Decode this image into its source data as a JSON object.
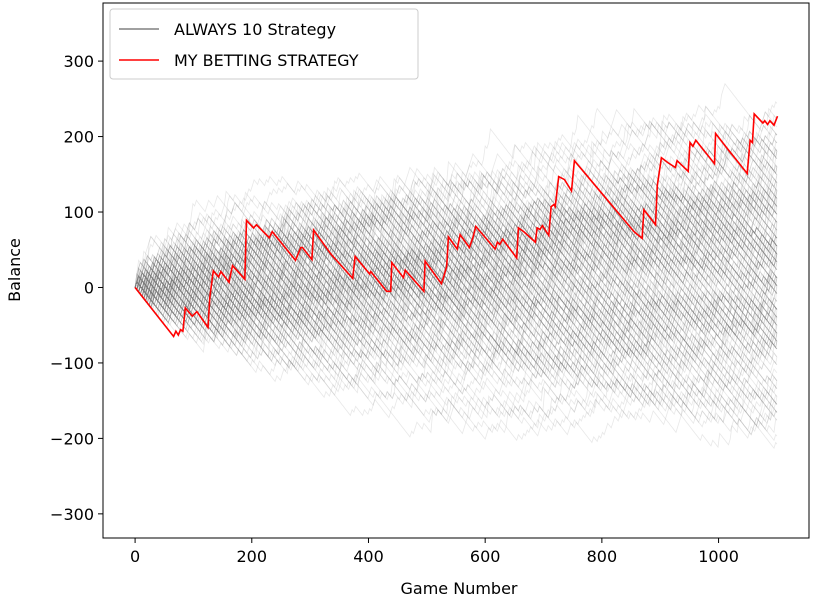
{
  "chart_data": {
    "type": "line",
    "title": "",
    "xlabel": "Game Number",
    "ylabel": "Balance",
    "xlim": [
      -55,
      1155
    ],
    "ylim": [
      -332,
      377
    ],
    "xticks": [
      0,
      200,
      400,
      600,
      800,
      1000
    ],
    "xtick_labels": [
      "0",
      "200",
      "400",
      "600",
      "800",
      "1000"
    ],
    "yticks": [
      300,
      200,
      100,
      0,
      -100,
      -200,
      -300
    ],
    "ytick_labels": [
      "300",
      "200",
      "100",
      "0",
      "−100",
      "−200",
      "−300"
    ],
    "grid": false,
    "legend": {
      "placement": "upper-left",
      "entries": [
        {
          "label": "ALWAYS 10 Strategy",
          "color": "#808080"
        },
        {
          "label": "MY BETTING STRATEGY",
          "color": "#ff0000"
        }
      ]
    },
    "series": [
      {
        "name": "ALWAYS 10 Strategy",
        "color": "#808080",
        "kind": "many simulated runs (semi-transparent gray), games 0-1100, range approx -300 to 345"
      },
      {
        "name": "MY BETTING STRATEGY",
        "color": "#ff0000",
        "points": [
          [
            0,
            0
          ],
          [
            66,
            -65
          ],
          [
            70,
            -58
          ],
          [
            74,
            -63
          ],
          [
            78,
            -56
          ],
          [
            82,
            -58
          ],
          [
            86,
            -27
          ],
          [
            98,
            -38
          ],
          [
            106,
            -32
          ],
          [
            125,
            -53
          ],
          [
            128,
            -13
          ],
          [
            134,
            22
          ],
          [
            143,
            14
          ],
          [
            147,
            21
          ],
          [
            161,
            7
          ],
          [
            167,
            29
          ],
          [
            188,
            11
          ],
          [
            191,
            89
          ],
          [
            203,
            79
          ],
          [
            208,
            83
          ],
          [
            230,
            66
          ],
          [
            235,
            74
          ],
          [
            275,
            36
          ],
          [
            284,
            53
          ],
          [
            287,
            53
          ],
          [
            303,
            37
          ],
          [
            306,
            76
          ],
          [
            336,
            44
          ],
          [
            373,
            12
          ],
          [
            377,
            41
          ],
          [
            402,
            18
          ],
          [
            404,
            21
          ],
          [
            431,
            -5
          ],
          [
            438,
            -5
          ],
          [
            440,
            33
          ],
          [
            460,
            13
          ],
          [
            463,
            23
          ],
          [
            495,
            -5
          ],
          [
            497,
            35
          ],
          [
            525,
            5
          ],
          [
            529,
            14
          ],
          [
            534,
            28
          ],
          [
            537,
            67
          ],
          [
            552,
            51
          ],
          [
            557,
            70
          ],
          [
            573,
            53
          ],
          [
            579,
            66
          ],
          [
            584,
            81
          ],
          [
            617,
            51
          ],
          [
            621,
            60
          ],
          [
            625,
            57
          ],
          [
            630,
            64
          ],
          [
            654,
            39
          ],
          [
            657,
            79
          ],
          [
            666,
            74
          ],
          [
            686,
            60
          ],
          [
            689,
            79
          ],
          [
            694,
            77
          ],
          [
            698,
            82
          ],
          [
            709,
            69
          ],
          [
            713,
            107
          ],
          [
            718,
            110
          ],
          [
            720,
            107
          ],
          [
            726,
            147
          ],
          [
            736,
            143
          ],
          [
            748,
            128
          ],
          [
            753,
            168
          ],
          [
            804,
            121
          ],
          [
            855,
            74
          ],
          [
            869,
            65
          ],
          [
            872,
            103
          ],
          [
            892,
            83
          ],
          [
            895,
            135
          ],
          [
            902,
            172
          ],
          [
            914,
            165
          ],
          [
            926,
            159
          ],
          [
            929,
            168
          ],
          [
            948,
            154
          ],
          [
            951,
            192
          ],
          [
            956,
            187
          ],
          [
            961,
            195
          ],
          [
            993,
            164
          ],
          [
            995,
            204
          ],
          [
            1012,
            187
          ],
          [
            1049,
            151
          ],
          [
            1054,
            195
          ],
          [
            1058,
            192
          ],
          [
            1061,
            230
          ],
          [
            1076,
            218
          ],
          [
            1079,
            221
          ],
          [
            1084,
            216
          ],
          [
            1088,
            221
          ],
          [
            1095,
            215
          ],
          [
            1101,
            227
          ]
        ]
      }
    ]
  }
}
